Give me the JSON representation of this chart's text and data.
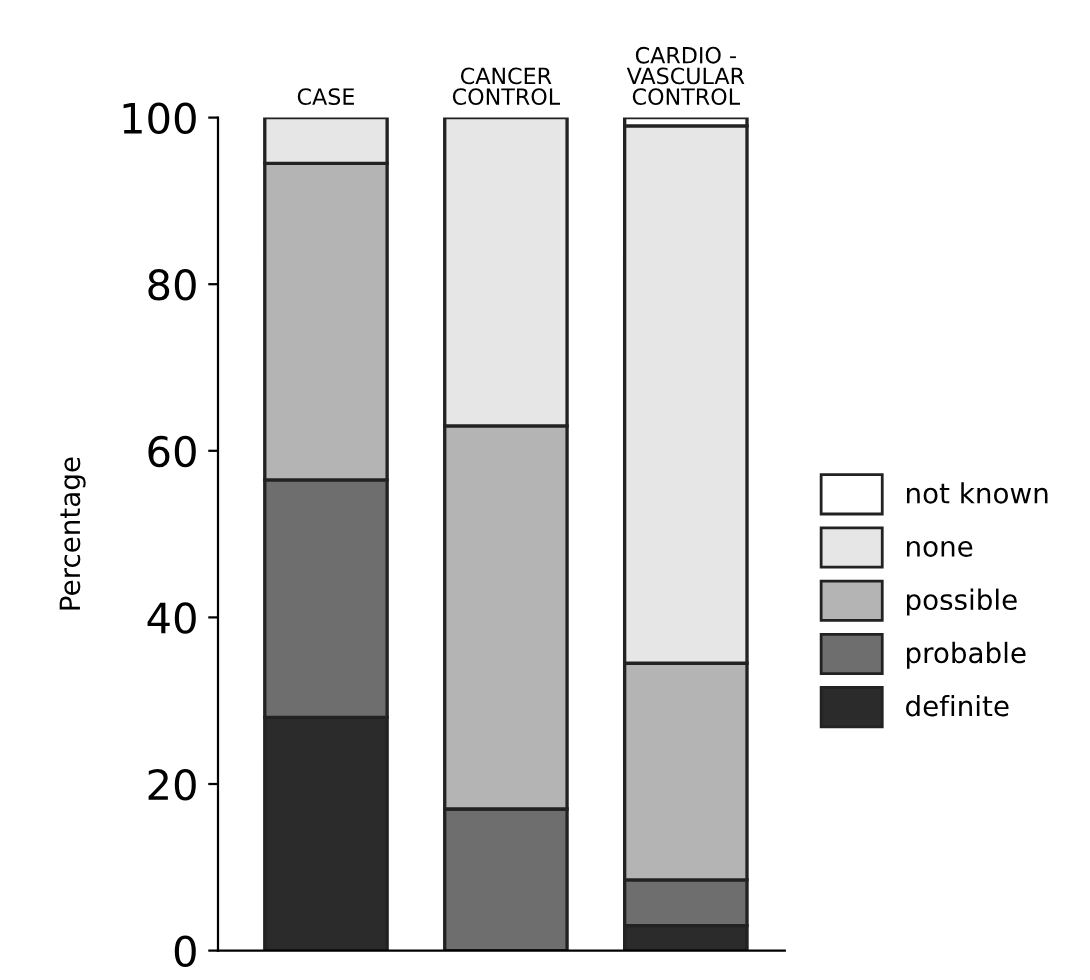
{
  "chart_data": {
    "type": "bar",
    "stacked": true,
    "ylabel": "Percentage",
    "categories": [
      "CASE",
      "CANCER\nCONTROL",
      "CARDIO -\nVASCULAR\nCONTROL"
    ],
    "series": [
      {
        "name": "definite",
        "color": "#2b2b2b",
        "values": [
          28,
          0,
          3
        ]
      },
      {
        "name": "probable",
        "color": "#6e6e6e",
        "values": [
          28.5,
          17,
          5.5
        ]
      },
      {
        "name": "possible",
        "color": "#b4b4b4",
        "values": [
          38,
          46,
          26
        ]
      },
      {
        "name": "none",
        "color": "#e6e6e6",
        "values": [
          5.5,
          37,
          64.5
        ]
      },
      {
        "name": "not known",
        "color": "#ffffff",
        "values": [
          0,
          0,
          1
        ]
      }
    ],
    "ylim": [
      0,
      100
    ],
    "yticks": [
      0,
      20,
      40,
      60,
      80,
      100
    ],
    "grid": false,
    "legend": "right"
  }
}
